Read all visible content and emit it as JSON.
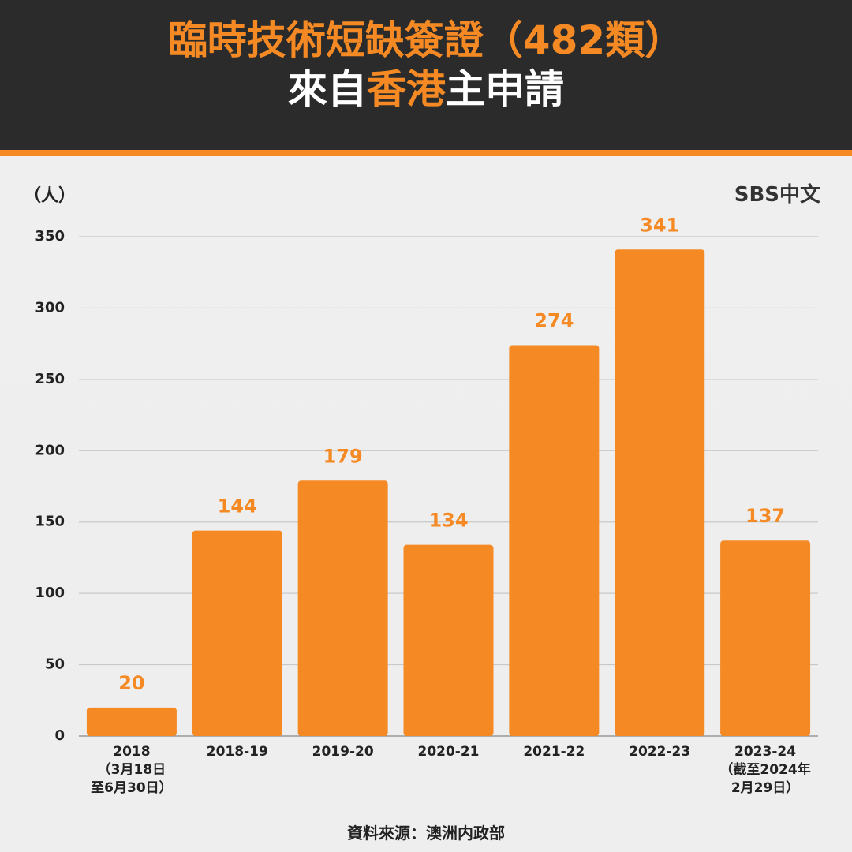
{
  "chart_data": {
    "type": "bar",
    "title": [
      [
        "臨時技術短缺簽證（482類）"
      ],
      [
        "來自",
        "香港",
        "主申請"
      ]
    ],
    "y_label": "（人）",
    "brand": "SBS中文",
    "source": "資料來源：澳洲内政部",
    "categories": [
      "2018\n（3月18日\n至6月30日）",
      "2018-19",
      "2019-20",
      "2020-21",
      "2021-22",
      "2022-23",
      "2023-24\n（截至2024年\n2月29日）"
    ],
    "values": [
      20,
      144,
      179,
      134,
      274,
      341,
      137
    ],
    "color": "#f58a25",
    "ylim": [
      0,
      350
    ],
    "yticks": [
      0,
      50,
      100,
      150,
      200,
      250,
      300,
      350
    ],
    "grid": true
  }
}
